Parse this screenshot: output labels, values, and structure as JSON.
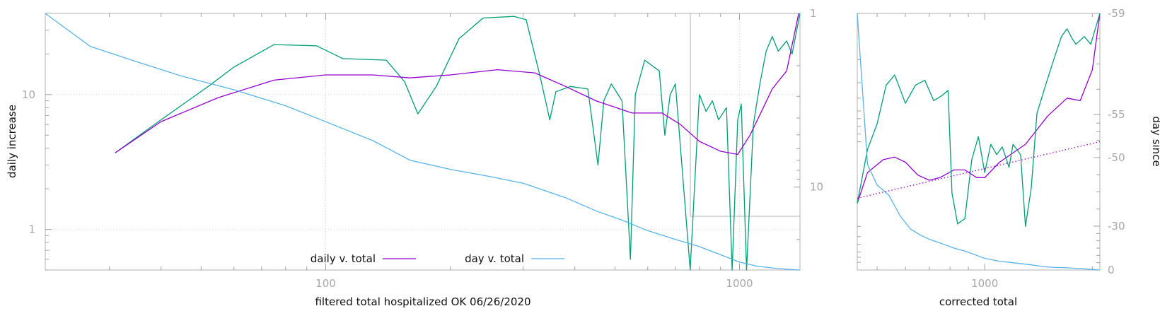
{
  "colors": {
    "purple": "#9400d3",
    "green": "#009e73",
    "blue": "#56b4e9",
    "axis": "#b0b0b0",
    "ticklabel": "#a8a8a8"
  },
  "chart_data": [
    {
      "type": "line",
      "xlabel": "filtered total hospitalized OK 06/26/2020",
      "ylabel": "daily increase",
      "xscale": "log",
      "yscale": "log",
      "xlim": [
        21,
        1400
      ],
      "ylim": [
        0.5,
        40
      ],
      "xticks": [
        100,
        1000
      ],
      "yticks": [
        1,
        10
      ],
      "y2scale": "log",
      "y2lim": [
        1,
        30
      ],
      "y2ticks": [
        1,
        10
      ],
      "grid": true,
      "legend_position": "bottom-center",
      "legend": [
        "daily v. total",
        "day v. total"
      ],
      "series": [
        {
          "name": "daily v. total",
          "color": "#9400d3",
          "axis": "y",
          "points": [
            [
              31,
              3.7
            ],
            [
              40,
              6.3
            ],
            [
              55,
              9.5
            ],
            [
              75,
              12.8
            ],
            [
              100,
              14.0
            ],
            [
              130,
              14.0
            ],
            [
              160,
              13.3
            ],
            [
              200,
              14.0
            ],
            [
              260,
              15.3
            ],
            [
              320,
              14.5
            ],
            [
              380,
              11.5
            ],
            [
              450,
              9.0
            ],
            [
              550,
              7.3
            ],
            [
              650,
              7.3
            ],
            [
              720,
              6.0
            ],
            [
              800,
              4.5
            ],
            [
              900,
              3.8
            ],
            [
              990,
              3.6
            ],
            [
              1060,
              5.0
            ],
            [
              1130,
              7.5
            ],
            [
              1200,
              11.0
            ],
            [
              1300,
              15.0
            ],
            [
              1390,
              40
            ]
          ]
        },
        {
          "name": "",
          "color": "#009e73",
          "axis": "y",
          "points": [
            [
              31,
              3.7
            ],
            [
              40,
              6.5
            ],
            [
              52,
              11.5
            ],
            [
              60,
              16
            ],
            [
              75,
              23.5
            ],
            [
              95,
              23
            ],
            [
              110,
              18.5
            ],
            [
              140,
              18.0
            ],
            [
              155,
              12.5
            ],
            [
              167,
              7.2
            ],
            [
              185,
              11.5
            ],
            [
              210,
              26
            ],
            [
              240,
              37
            ],
            [
              285,
              38
            ],
            [
              305,
              36
            ],
            [
              330,
              13.5
            ],
            [
              348,
              6.5
            ],
            [
              360,
              10.5
            ],
            [
              390,
              11.5
            ],
            [
              430,
              11
            ],
            [
              455,
              3.0
            ],
            [
              470,
              9
            ],
            [
              490,
              12
            ],
            [
              520,
              9
            ],
            [
              545,
              0.6
            ],
            [
              560,
              10
            ],
            [
              590,
              18
            ],
            [
              640,
              15
            ],
            [
              660,
              5.0
            ],
            [
              680,
              10
            ],
            [
              700,
              12
            ],
            [
              760,
              0.45
            ],
            [
              800,
              10
            ],
            [
              830,
              7.5
            ],
            [
              860,
              9
            ],
            [
              890,
              6.5
            ],
            [
              930,
              8.0
            ],
            [
              960,
              0.35
            ],
            [
              990,
              6.5
            ],
            [
              1010,
              8.5
            ],
            [
              1040,
              0.3
            ],
            [
              1080,
              6.0
            ],
            [
              1120,
              12
            ],
            [
              1160,
              21
            ],
            [
              1200,
              27
            ],
            [
              1240,
              21
            ],
            [
              1300,
              25
            ],
            [
              1340,
              20
            ],
            [
              1400,
              40
            ]
          ]
        },
        {
          "name": "day v. total",
          "color": "#56b4e9",
          "axis": "y2",
          "points": [
            [
              21,
              1.0
            ],
            [
              27,
              1.55
            ],
            [
              35,
              1.9
            ],
            [
              45,
              2.3
            ],
            [
              60,
              2.75
            ],
            [
              80,
              3.4
            ],
            [
              100,
              4.2
            ],
            [
              130,
              5.4
            ],
            [
              160,
              7.0
            ],
            [
              200,
              7.9
            ],
            [
              250,
              8.7
            ],
            [
              300,
              9.5
            ],
            [
              380,
              11.5
            ],
            [
              450,
              13.7
            ],
            [
              520,
              15.5
            ],
            [
              600,
              17.8
            ],
            [
              700,
              20.0
            ],
            [
              800,
              22.0
            ],
            [
              900,
              24.5
            ],
            [
              1000,
              27
            ],
            [
              1100,
              28.5
            ],
            [
              1200,
              29.2
            ],
            [
              1300,
              29.7
            ],
            [
              1400,
              30
            ]
          ]
        }
      ]
    },
    {
      "type": "line",
      "xlabel": "corrected total",
      "ylabel": "day since",
      "xscale": "log",
      "xlim": [
        440,
        2100
      ],
      "xticks": [
        1000
      ],
      "y2ticks": [
        -59,
        -55,
        -50,
        -30,
        0
      ],
      "grid": false,
      "series": [
        {
          "name": "",
          "color": "#9400d3",
          "axis": "y",
          "points": [
            [
              440,
              0.74
            ],
            [
              470,
              0.62
            ],
            [
              520,
              0.57
            ],
            [
              560,
              0.56
            ],
            [
              600,
              0.58
            ],
            [
              650,
              0.63
            ],
            [
              700,
              0.65
            ],
            [
              750,
              0.64
            ],
            [
              820,
              0.61
            ],
            [
              880,
              0.61
            ],
            [
              950,
              0.64
            ],
            [
              1000,
              0.64
            ],
            [
              1100,
              0.58
            ],
            [
              1300,
              0.51
            ],
            [
              1500,
              0.4
            ],
            [
              1700,
              0.33
            ],
            [
              1850,
              0.34
            ],
            [
              2000,
              0.22
            ],
            [
              2100,
              0.0
            ]
          ]
        },
        {
          "name": "",
          "color": "#009e73",
          "axis": "y",
          "points": [
            [
              440,
              0.74
            ],
            [
              470,
              0.53
            ],
            [
              500,
              0.43
            ],
            [
              530,
              0.28
            ],
            [
              560,
              0.24
            ],
            [
              600,
              0.35
            ],
            [
              640,
              0.28
            ],
            [
              680,
              0.26
            ],
            [
              720,
              0.34
            ],
            [
              760,
              0.32
            ],
            [
              790,
              0.3
            ],
            [
              810,
              0.7
            ],
            [
              840,
              0.82
            ],
            [
              880,
              0.8
            ],
            [
              920,
              0.57
            ],
            [
              960,
              0.48
            ],
            [
              1000,
              0.62
            ],
            [
              1040,
              0.51
            ],
            [
              1080,
              0.55
            ],
            [
              1120,
              0.52
            ],
            [
              1170,
              0.6
            ],
            [
              1200,
              0.51
            ],
            [
              1260,
              0.55
            ],
            [
              1300,
              0.83
            ],
            [
              1350,
              0.68
            ],
            [
              1400,
              0.39
            ],
            [
              1480,
              0.28
            ],
            [
              1560,
              0.18
            ],
            [
              1640,
              0.09
            ],
            [
              1700,
              0.06
            ],
            [
              1760,
              0.1
            ],
            [
              1800,
              0.12
            ],
            [
              1900,
              0.09
            ],
            [
              1980,
              0.12
            ],
            [
              2100,
              0.0
            ]
          ]
        },
        {
          "name": "",
          "color": "#56b4e9",
          "axis": "y2",
          "points": [
            [
              440,
              -59
            ],
            [
              470,
              -48
            ],
            [
              500,
              -42
            ],
            [
              540,
              -39
            ],
            [
              580,
              -33
            ],
            [
              620,
              -28
            ],
            [
              660,
              -24
            ],
            [
              700,
              -21
            ],
            [
              760,
              -18
            ],
            [
              820,
              -15
            ],
            [
              880,
              -13
            ],
            [
              950,
              -10
            ],
            [
              1000,
              -8
            ],
            [
              1100,
              -6
            ],
            [
              1300,
              -4
            ],
            [
              1500,
              -2
            ],
            [
              1700,
              -1.5
            ],
            [
              1900,
              -0.8
            ],
            [
              2100,
              0
            ]
          ]
        },
        {
          "name": "",
          "color": "#9400d3",
          "axis": "y",
          "dashed": true,
          "points": [
            [
              440,
              0.72
            ],
            [
              2100,
              0.5
            ]
          ]
        }
      ]
    }
  ]
}
